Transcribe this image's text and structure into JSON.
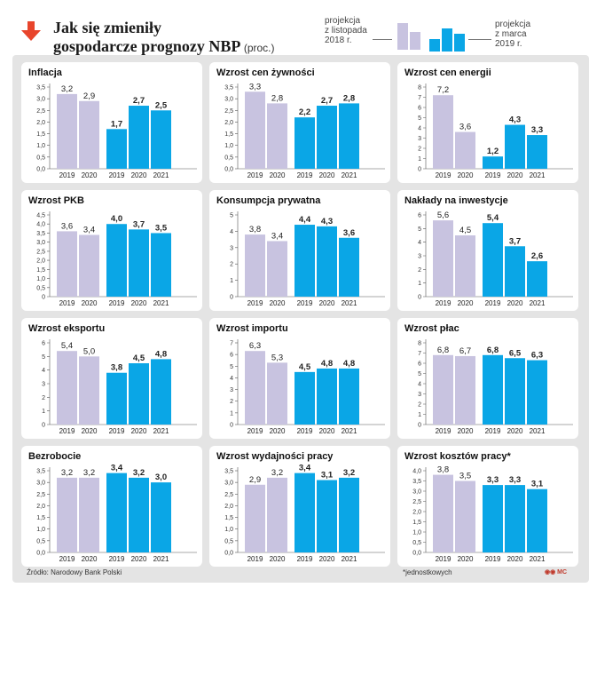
{
  "header": {
    "title_line1": "Jak się zmieniły",
    "title_line2": "gospodarcze prognozy NBP",
    "title_unit": "(proc.)",
    "legend_nov": "projekcja\nz listopada\n2018 r.",
    "legend_mar": "projekcja\nz marca\n2019 r."
  },
  "colors": {
    "november": "#c8c3e0",
    "march": "#0aa6e6",
    "accent": "#e8452c"
  },
  "footer": {
    "source": "Źródło: Narodowy Bank Polski",
    "note": "*jednostkowych",
    "logo": "MC"
  },
  "chart_data": [
    {
      "type": "bar",
      "title": "Inflacja",
      "ylim": [
        0,
        3.5
      ],
      "yticks": [
        "0,0",
        "0,5",
        "1,0",
        "1,5",
        "2,0",
        "2,5",
        "3,0",
        "3,5"
      ],
      "series": [
        {
          "name": "projekcja z listopada 2018 r.",
          "categories": [
            "2019",
            "2020"
          ],
          "values": [
            3.2,
            2.9
          ],
          "labels": [
            "3,2",
            "2,9"
          ]
        },
        {
          "name": "projekcja z marca 2019 r.",
          "categories": [
            "2019",
            "2020",
            "2021"
          ],
          "values": [
            1.7,
            2.7,
            2.5
          ],
          "labels": [
            "1,7",
            "2,7",
            "2,5"
          ]
        }
      ]
    },
    {
      "type": "bar",
      "title": "Wzrost cen żywności",
      "ylim": [
        0,
        3.5
      ],
      "yticks": [
        "0,0",
        "0,5",
        "1,0",
        "1,5",
        "2,0",
        "2,5",
        "3,0",
        "3,5"
      ],
      "series": [
        {
          "name": "projekcja z listopada 2018 r.",
          "categories": [
            "2019",
            "2020"
          ],
          "values": [
            3.3,
            2.8
          ],
          "labels": [
            "3,3",
            "2,8"
          ]
        },
        {
          "name": "projekcja z marca 2019 r.",
          "categories": [
            "2019",
            "2020",
            "2021"
          ],
          "values": [
            2.2,
            2.7,
            2.8
          ],
          "labels": [
            "2,2",
            "2,7",
            "2,8"
          ]
        }
      ]
    },
    {
      "type": "bar",
      "title": "Wzrost cen energii",
      "ylim": [
        0,
        8
      ],
      "yticks": [
        "0",
        "1",
        "2",
        "3",
        "4",
        "5",
        "6",
        "7",
        "8"
      ],
      "series": [
        {
          "name": "projekcja z listopada 2018 r.",
          "categories": [
            "2019",
            "2020"
          ],
          "values": [
            7.2,
            3.6
          ],
          "labels": [
            "7,2",
            "3,6"
          ]
        },
        {
          "name": "projekcja z marca 2019 r.",
          "categories": [
            "2019",
            "2020",
            "2021"
          ],
          "values": [
            1.2,
            4.3,
            3.3
          ],
          "labels": [
            "1,2",
            "4,3",
            "3,3"
          ]
        }
      ]
    },
    {
      "type": "bar",
      "title": "Wzrost PKB",
      "ylim": [
        0,
        4.5
      ],
      "yticks": [
        "0",
        "0,5",
        "1,0",
        "1,5",
        "2,0",
        "2,5",
        "3,0",
        "3,5",
        "4,0",
        "4,5"
      ],
      "series": [
        {
          "name": "projekcja z listopada 2018 r.",
          "categories": [
            "2019",
            "2020"
          ],
          "values": [
            3.6,
            3.4
          ],
          "labels": [
            "3,6",
            "3,4"
          ]
        },
        {
          "name": "projekcja z marca 2019 r.",
          "categories": [
            "2019",
            "2020",
            "2021"
          ],
          "values": [
            4.0,
            3.7,
            3.5
          ],
          "labels": [
            "4,0",
            "3,7",
            "3,5"
          ]
        }
      ]
    },
    {
      "type": "bar",
      "title": "Konsumpcja prywatna",
      "ylim": [
        0,
        5
      ],
      "yticks": [
        "0",
        "1",
        "2",
        "3",
        "4",
        "5"
      ],
      "series": [
        {
          "name": "projekcja z listopada 2018 r.",
          "categories": [
            "2019",
            "2020"
          ],
          "values": [
            3.8,
            3.4
          ],
          "labels": [
            "3,8",
            "3,4"
          ]
        },
        {
          "name": "projekcja z marca 2019 r.",
          "categories": [
            "2019",
            "2020",
            "2021"
          ],
          "values": [
            4.4,
            4.3,
            3.6
          ],
          "labels": [
            "4,4",
            "4,3",
            "3,6"
          ]
        }
      ]
    },
    {
      "type": "bar",
      "title": "Nakłady na inwestycje",
      "ylim": [
        0,
        6
      ],
      "yticks": [
        "0",
        "1",
        "2",
        "3",
        "4",
        "5",
        "6"
      ],
      "series": [
        {
          "name": "projekcja z listopada 2018 r.",
          "categories": [
            "2019",
            "2020"
          ],
          "values": [
            5.6,
            4.5
          ],
          "labels": [
            "5,6",
            "4,5"
          ]
        },
        {
          "name": "projekcja z marca 2019 r.",
          "categories": [
            "2019",
            "2020",
            "2021"
          ],
          "values": [
            5.4,
            3.7,
            2.6
          ],
          "labels": [
            "5,4",
            "3,7",
            "2,6"
          ]
        }
      ]
    },
    {
      "type": "bar",
      "title": "Wzrost eksportu",
      "ylim": [
        0,
        6
      ],
      "yticks": [
        "0",
        "1",
        "2",
        "3",
        "4",
        "5",
        "6"
      ],
      "series": [
        {
          "name": "projekcja z listopada 2018 r.",
          "categories": [
            "2019",
            "2020"
          ],
          "values": [
            5.4,
            5.0
          ],
          "labels": [
            "5,4",
            "5,0"
          ]
        },
        {
          "name": "projekcja z marca 2019 r.",
          "categories": [
            "2019",
            "2020",
            "2021"
          ],
          "values": [
            3.8,
            4.5,
            4.8
          ],
          "labels": [
            "3,8",
            "4,5",
            "4,8"
          ]
        }
      ]
    },
    {
      "type": "bar",
      "title": "Wzrost importu",
      "ylim": [
        0,
        7
      ],
      "yticks": [
        "0",
        "1",
        "2",
        "3",
        "4",
        "5",
        "6",
        "7"
      ],
      "series": [
        {
          "name": "projekcja z listopada 2018 r.",
          "categories": [
            "2019",
            "2020"
          ],
          "values": [
            6.3,
            5.3
          ],
          "labels": [
            "6,3",
            "5,3"
          ]
        },
        {
          "name": "projekcja z marca 2019 r.",
          "categories": [
            "2019",
            "2020",
            "2021"
          ],
          "values": [
            4.5,
            4.8,
            4.8
          ],
          "labels": [
            "4,5",
            "4,8",
            "4,8"
          ]
        }
      ]
    },
    {
      "type": "bar",
      "title": "Wzrost płac",
      "ylim": [
        0,
        8
      ],
      "yticks": [
        "0",
        "1",
        "2",
        "3",
        "4",
        "5",
        "6",
        "7",
        "8"
      ],
      "series": [
        {
          "name": "projekcja z listopada 2018 r.",
          "categories": [
            "2019",
            "2020"
          ],
          "values": [
            6.8,
            6.7
          ],
          "labels": [
            "6,8",
            "6,7"
          ]
        },
        {
          "name": "projekcja z marca 2019 r.",
          "categories": [
            "2019",
            "2020",
            "2021"
          ],
          "values": [
            6.8,
            6.5,
            6.3
          ],
          "labels": [
            "6,8",
            "6,5",
            "6,3"
          ]
        }
      ]
    },
    {
      "type": "bar",
      "title": "Bezrobocie",
      "ylim": [
        0,
        3.5
      ],
      "yticks": [
        "0,0",
        "0,5",
        "1,0",
        "1,5",
        "2,0",
        "2,5",
        "3,0",
        "3,5"
      ],
      "series": [
        {
          "name": "projekcja z listopada 2018 r.",
          "categories": [
            "2019",
            "2020"
          ],
          "values": [
            3.2,
            3.2
          ],
          "labels": [
            "3,2",
            "3,2"
          ]
        },
        {
          "name": "projekcja z marca 2019 r.",
          "categories": [
            "2019",
            "2020",
            "2021"
          ],
          "values": [
            3.4,
            3.2,
            3.0
          ],
          "labels": [
            "3,4",
            "3,2",
            "3,0"
          ]
        }
      ]
    },
    {
      "type": "bar",
      "title": "Wzrost wydajności pracy",
      "ylim": [
        0,
        3.5
      ],
      "yticks": [
        "0,0",
        "0,5",
        "1,0",
        "1,5",
        "2,0",
        "2,5",
        "3,0",
        "3,5"
      ],
      "series": [
        {
          "name": "projekcja z listopada 2018 r.",
          "categories": [
            "2019",
            "2020"
          ],
          "values": [
            2.9,
            3.2
          ],
          "labels": [
            "2,9",
            "3,2"
          ]
        },
        {
          "name": "projekcja z marca 2019 r.",
          "categories": [
            "2019",
            "2020",
            "2021"
          ],
          "values": [
            3.4,
            3.1,
            3.2
          ],
          "labels": [
            "3,4",
            "3,1",
            "3,2"
          ]
        }
      ]
    },
    {
      "type": "bar",
      "title": "Wzrost kosztów pracy*",
      "ylim": [
        0,
        4
      ],
      "yticks": [
        "0,0",
        "0,5",
        "1,0",
        "1,5",
        "2,0",
        "2,5",
        "3,0",
        "3,5",
        "4,0"
      ],
      "series": [
        {
          "name": "projekcja z listopada 2018 r.",
          "categories": [
            "2019",
            "2020"
          ],
          "values": [
            3.8,
            3.5
          ],
          "labels": [
            "3,8",
            "3,5"
          ]
        },
        {
          "name": "projekcja z marca 2019 r.",
          "categories": [
            "2019",
            "2020",
            "2021"
          ],
          "values": [
            3.3,
            3.3,
            3.1
          ],
          "labels": [
            "3,3",
            "3,3",
            "3,1"
          ]
        }
      ]
    }
  ]
}
